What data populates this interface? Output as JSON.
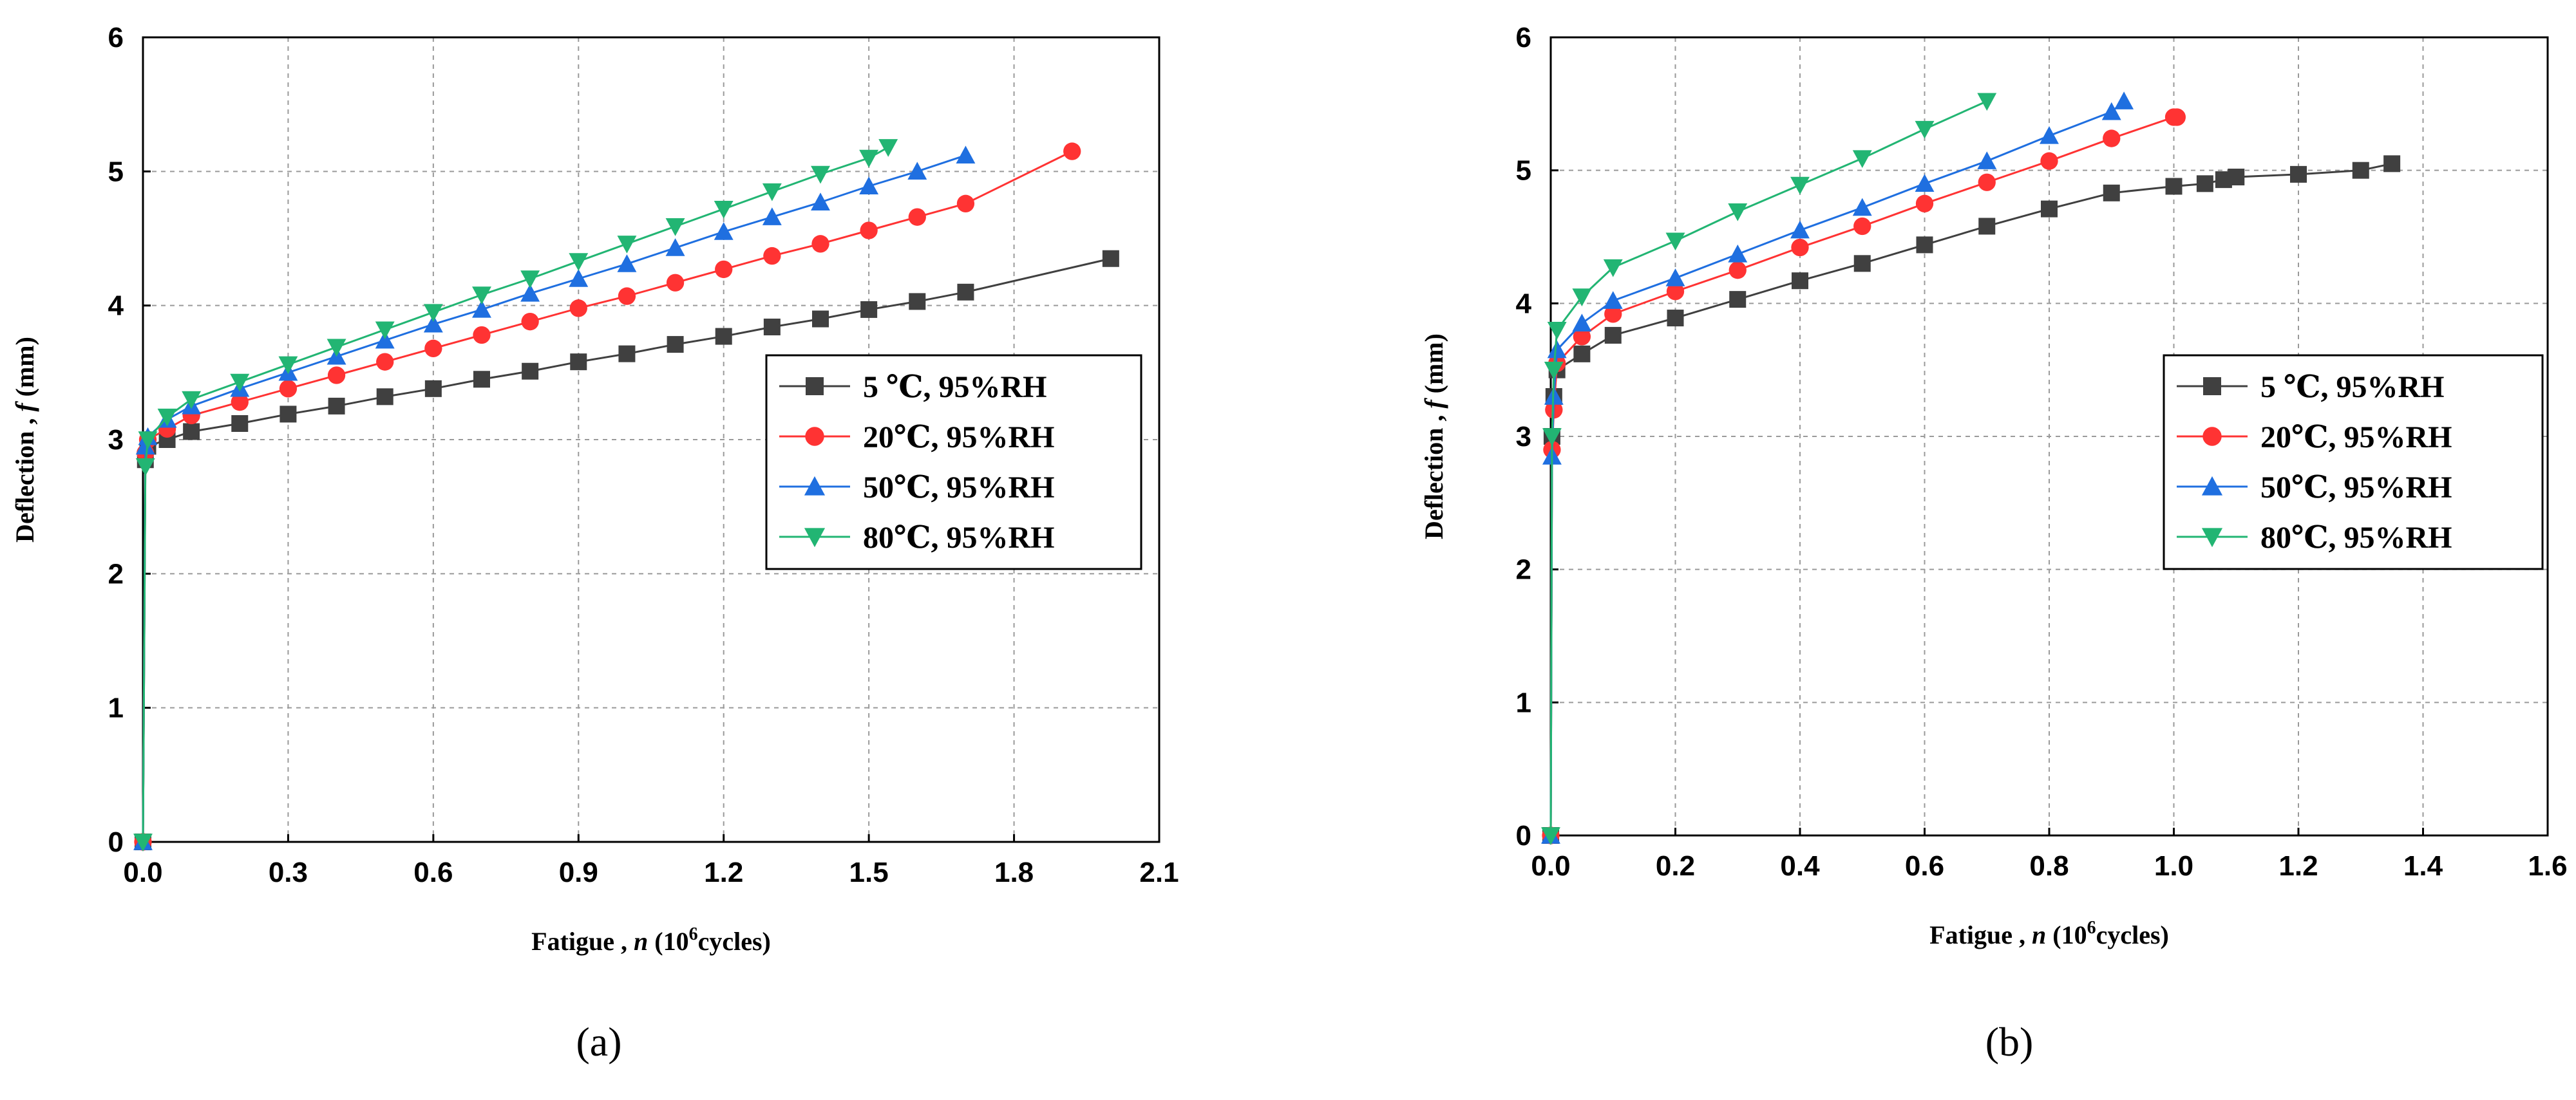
{
  "figure": {
    "panels": [
      "(a)",
      "(b)"
    ]
  },
  "chart_data": [
    {
      "type": "line",
      "panel_label": "(a)",
      "xlabel": {
        "prefix": "Fatigue ,  ",
        "var": "n",
        "mid": " (10",
        "sup": "6",
        "suffix": "cycles)"
      },
      "ylabel": {
        "prefix": "Deflection ,  ",
        "var": "f",
        "suffix": " (mm)"
      },
      "xlim": [
        0,
        2.1
      ],
      "ylim": [
        0,
        6
      ],
      "xticks": [
        0.0,
        0.3,
        0.6,
        0.9,
        1.2,
        1.5,
        1.8,
        2.1
      ],
      "xtick_labels": [
        "0.0",
        "0.3",
        "0.6",
        "0.9",
        "1.2",
        "1.5",
        "1.8",
        "2.1"
      ],
      "yticks": [
        0,
        1,
        2,
        3,
        4,
        5,
        6
      ],
      "ytick_labels": [
        "0",
        "1",
        "2",
        "3",
        "4",
        "5",
        "6"
      ],
      "grid": true,
      "legend_position": "right-middle",
      "series": [
        {
          "name": "5  ℃, 95%RH",
          "color": "#404040",
          "marker": "square",
          "x": [
            0,
            0.005,
            0.01,
            0.05,
            0.1,
            0.2,
            0.3,
            0.4,
            0.5,
            0.6,
            0.7,
            0.8,
            0.9,
            1.0,
            1.1,
            1.2,
            1.3,
            1.4,
            1.5,
            1.6,
            1.7,
            2.0
          ],
          "y": [
            0,
            2.85,
            2.95,
            3.0,
            3.06,
            3.12,
            3.19,
            3.25,
            3.32,
            3.38,
            3.45,
            3.51,
            3.58,
            3.64,
            3.71,
            3.77,
            3.84,
            3.9,
            3.97,
            4.03,
            4.1,
            4.35
          ]
        },
        {
          "name": "20℃, 95%RH",
          "color": "#ff3333",
          "marker": "circle",
          "x": [
            0,
            0.005,
            0.01,
            0.05,
            0.1,
            0.2,
            0.3,
            0.4,
            0.5,
            0.6,
            0.7,
            0.8,
            0.9,
            1.0,
            1.1,
            1.2,
            1.3,
            1.4,
            1.5,
            1.6,
            1.7,
            1.92
          ],
          "y": [
            0,
            2.9,
            3.0,
            3.08,
            3.18,
            3.28,
            3.38,
            3.48,
            3.58,
            3.68,
            3.78,
            3.88,
            3.98,
            4.07,
            4.17,
            4.27,
            4.37,
            4.46,
            4.56,
            4.66,
            4.76,
            5.15
          ]
        },
        {
          "name": "50℃, 95%RH",
          "color": "#1f6fe0",
          "marker": "triangle-up",
          "x": [
            0,
            0.005,
            0.01,
            0.05,
            0.1,
            0.2,
            0.3,
            0.4,
            0.5,
            0.6,
            0.7,
            0.8,
            0.9,
            1.0,
            1.1,
            1.2,
            1.3,
            1.4,
            1.5,
            1.6,
            1.7
          ],
          "y": [
            0,
            2.95,
            3.02,
            3.15,
            3.25,
            3.38,
            3.5,
            3.62,
            3.74,
            3.86,
            3.97,
            4.09,
            4.2,
            4.31,
            4.43,
            4.55,
            4.66,
            4.77,
            4.89,
            5.0,
            5.12
          ]
        },
        {
          "name": "80℃, 95%RH",
          "color": "#22b573",
          "marker": "triangle-down",
          "x": [
            0,
            0.005,
            0.01,
            0.05,
            0.1,
            0.2,
            0.3,
            0.4,
            0.5,
            0.6,
            0.7,
            0.8,
            0.9,
            1.0,
            1.1,
            1.2,
            1.3,
            1.4,
            1.5,
            1.54
          ],
          "y": [
            0,
            2.8,
            3.0,
            3.17,
            3.3,
            3.43,
            3.56,
            3.69,
            3.82,
            3.95,
            4.08,
            4.2,
            4.33,
            4.46,
            4.59,
            4.72,
            4.85,
            4.98,
            5.1,
            5.18
          ]
        }
      ]
    },
    {
      "type": "line",
      "panel_label": "(b)",
      "xlabel": {
        "prefix": "Fatigue ,  ",
        "var": "n",
        "mid": " (10",
        "sup": "6",
        "suffix": "cycles)"
      },
      "ylabel": {
        "prefix": "Deflection ,  ",
        "var": "f",
        "suffix": " (mm)"
      },
      "xlim": [
        0,
        1.6
      ],
      "ylim": [
        0,
        6
      ],
      "xticks": [
        0.0,
        0.2,
        0.4,
        0.6,
        0.8,
        1.0,
        1.2,
        1.4,
        1.6
      ],
      "xtick_labels": [
        "0.0",
        "0.2",
        "0.4",
        "0.6",
        "0.8",
        "1.0",
        "1.2",
        "1.4",
        "1.6"
      ],
      "yticks": [
        0,
        1,
        2,
        3,
        4,
        5,
        6
      ],
      "ytick_labels": [
        "0",
        "1",
        "2",
        "3",
        "4",
        "5",
        "6"
      ],
      "grid": true,
      "legend_position": "right-middle",
      "series": [
        {
          "name": "5  ℃, 95%RH",
          "color": "#404040",
          "marker": "square",
          "x": [
            0,
            0.002,
            0.005,
            0.01,
            0.05,
            0.1,
            0.2,
            0.3,
            0.4,
            0.5,
            0.6,
            0.7,
            0.8,
            0.9,
            1.0,
            1.05,
            1.08,
            1.1,
            1.2,
            1.3,
            1.35
          ],
          "y": [
            0,
            3.0,
            3.3,
            3.5,
            3.62,
            3.76,
            3.89,
            4.03,
            4.17,
            4.3,
            4.44,
            4.58,
            4.71,
            4.83,
            4.88,
            4.9,
            4.93,
            4.95,
            4.97,
            5.0,
            5.05
          ]
        },
        {
          "name": "20℃, 95%RH",
          "color": "#ff3333",
          "marker": "circle",
          "x": [
            0,
            0.002,
            0.005,
            0.01,
            0.05,
            0.1,
            0.2,
            0.3,
            0.4,
            0.5,
            0.6,
            0.7,
            0.8,
            0.9,
            1.0,
            1.005
          ],
          "y": [
            0,
            2.9,
            3.2,
            3.55,
            3.75,
            3.92,
            4.09,
            4.25,
            4.42,
            4.58,
            4.75,
            4.91,
            5.07,
            5.24,
            5.4,
            5.4
          ]
        },
        {
          "name": "50℃, 95%RH",
          "color": "#1f6fe0",
          "marker": "triangle-up",
          "x": [
            0,
            0.002,
            0.005,
            0.01,
            0.05,
            0.1,
            0.2,
            0.3,
            0.4,
            0.5,
            0.6,
            0.7,
            0.8,
            0.9,
            0.92
          ],
          "y": [
            0,
            2.85,
            3.3,
            3.65,
            3.85,
            4.02,
            4.19,
            4.37,
            4.55,
            4.72,
            4.9,
            5.07,
            5.26,
            5.44,
            5.52
          ]
        },
        {
          "name": "80℃, 95%RH",
          "color": "#22b573",
          "marker": "triangle-down",
          "x": [
            0,
            0.002,
            0.005,
            0.01,
            0.05,
            0.1,
            0.2,
            0.3,
            0.4,
            0.5,
            0.6,
            0.7
          ],
          "y": [
            0,
            3.0,
            3.5,
            3.8,
            4.05,
            4.27,
            4.47,
            4.69,
            4.89,
            5.09,
            5.31,
            5.52
          ]
        }
      ]
    }
  ]
}
